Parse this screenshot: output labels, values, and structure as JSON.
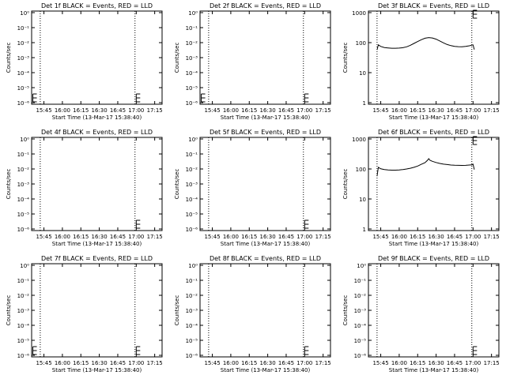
{
  "chart_data": {
    "type": "line",
    "xticks": [
      "15:45",
      "16:00",
      "16:15",
      "16:30",
      "16:45",
      "17:00",
      "17:15"
    ],
    "xtick_values_min": [
      0,
      15,
      30,
      45,
      60,
      75,
      90
    ],
    "xlim_min": [
      -10,
      96
    ],
    "xlabel": "Start Time (13-Mar-17 15:38:40)",
    "ylabel": "Counts/sec",
    "vertical_dotted_lines_min": [
      -3,
      74
    ],
    "panels": [
      {
        "title": "Det 1f BLACK = Events, RED = LLD",
        "scale": "tiny",
        "ylim": [
          1e-06,
          0.0001
        ],
        "yticks": [
          "10⁰",
          "10⁻¹",
          "10⁻²",
          "10⁻³",
          "10⁻⁴",
          "10⁻⁵",
          "10⁻⁶"
        ],
        "error_bars": [
          {
            "x": -9,
            "y": 10
          },
          {
            "x": 75,
            "y": 10
          }
        ],
        "series": []
      },
      {
        "title": "Det 2f BLACK = Events, RED = LLD",
        "scale": "tiny",
        "ylim": [
          1e-06,
          0.0001
        ],
        "yticks": [
          "10⁰",
          "10⁻¹",
          "10⁻²",
          "10⁻³",
          "10⁻⁴",
          "10⁻⁵",
          "10⁻⁶"
        ],
        "error_bars": [
          {
            "x": -9,
            "y": 10
          },
          {
            "x": 75,
            "y": 10
          }
        ],
        "series": []
      },
      {
        "title": "Det 3f BLACK = Events, RED = LLD",
        "scale": "log",
        "ylim": [
          1,
          1000
        ],
        "yticks": [
          "1000",
          "100",
          "10",
          "1"
        ],
        "error_bars": [
          {
            "x": 75,
            "y": 1000
          }
        ],
        "series": [
          {
            "x": [
              -3,
              -2,
              0,
              3,
              6,
              9,
              12,
              15,
              18,
              21,
              24,
              27,
              30,
              33,
              36,
              39,
              42,
              45,
              48,
              51,
              54,
              57,
              60,
              63,
              66,
              69,
              72,
              74,
              75,
              76
            ],
            "y": [
              60,
              88,
              78,
              72,
              70,
              68,
              68,
              69,
              71,
              76,
              85,
              98,
              113,
              130,
              145,
              152,
              148,
              135,
              118,
              102,
              90,
              83,
              78,
              77,
              76,
              78,
              82,
              86,
              88,
              62
            ]
          }
        ]
      },
      {
        "title": "Det 4f BLACK = Events, RED = LLD",
        "scale": "tiny",
        "ylim": [
          1e-06,
          0.0001
        ],
        "yticks": [
          "10⁰",
          "10⁻¹",
          "10⁻²",
          "10⁻³",
          "10⁻⁴",
          "10⁻⁵",
          "10⁻⁶"
        ],
        "error_bars": [
          {
            "x": 75,
            "y": 10
          }
        ],
        "series": []
      },
      {
        "title": "Det 5f BLACK = Events, RED = LLD",
        "scale": "tiny",
        "ylim": [
          1e-06,
          0.0001
        ],
        "yticks": [
          "10⁰",
          "10⁻¹",
          "10⁻²",
          "10⁻³",
          "10⁻⁴",
          "10⁻⁵",
          "10⁻⁶"
        ],
        "error_bars": [
          {
            "x": 75,
            "y": 10
          }
        ],
        "series": []
      },
      {
        "title": "Det 6f BLACK = Events, RED = LLD",
        "scale": "log",
        "ylim": [
          1,
          1000
        ],
        "yticks": [
          "1000",
          "100",
          "10",
          "1"
        ],
        "error_bars": [
          {
            "x": 75,
            "y": 1000
          }
        ],
        "series": [
          {
            "x": [
              -3,
              -2,
              0,
              3,
              6,
              9,
              12,
              15,
              18,
              21,
              24,
              27,
              30,
              33,
              36,
              38,
              39,
              40,
              42,
              45,
              48,
              51,
              54,
              57,
              60,
              63,
              66,
              69,
              72,
              74,
              75,
              76
            ],
            "y": [
              60,
              118,
              105,
              100,
              97,
              95,
              95,
              97,
              100,
              104,
              110,
              118,
              130,
              148,
              168,
              200,
              225,
              200,
              185,
              170,
              158,
              150,
              145,
              140,
              138,
              137,
              136,
              137,
              140,
              143,
              150,
              100
            ]
          }
        ]
      },
      {
        "title": "Det 7f BLACK = Events, RED = LLD",
        "scale": "tiny",
        "ylim": [
          1e-06,
          0.0001
        ],
        "yticks": [
          "10⁰",
          "10⁻¹",
          "10⁻²",
          "10⁻³",
          "10⁻⁴",
          "10⁻⁵",
          "10⁻⁶"
        ],
        "error_bars": [
          {
            "x": -9,
            "y": 10
          },
          {
            "x": 75,
            "y": 10
          }
        ],
        "series": []
      },
      {
        "title": "Det 8f BLACK = Events, RED = LLD",
        "scale": "tiny",
        "ylim": [
          1e-06,
          0.0001
        ],
        "yticks": [
          "10⁰",
          "10⁻¹",
          "10⁻²",
          "10⁻³",
          "10⁻⁴",
          "10⁻⁵",
          "10⁻⁶"
        ],
        "error_bars": [
          {
            "x": 75,
            "y": 10
          }
        ],
        "series": []
      },
      {
        "title": "Det 9f BLACK = Events, RED = LLD",
        "scale": "tiny",
        "ylim": [
          1e-06,
          0.0001
        ],
        "yticks": [
          "10⁰",
          "10⁻¹",
          "10⁻²",
          "10⁻³",
          "10⁻⁴",
          "10⁻⁵",
          "10⁻⁶"
        ],
        "error_bars": [
          {
            "x": 75,
            "y": 10
          }
        ],
        "series": []
      }
    ]
  },
  "colors": {
    "background": "#ffffff",
    "foreground": "#000000"
  }
}
